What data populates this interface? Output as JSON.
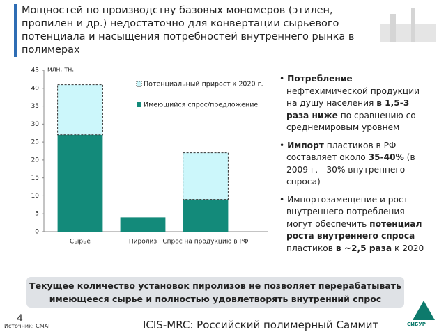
{
  "header": {
    "title": "Мощностей по производству базовых мономеров (этилен, пропилен и др.) недостаточно для конвертации сырьевого потенциала и насыщения потребностей внутреннего рынка в полимерах"
  },
  "chart_data": {
    "type": "stacked-bar",
    "unit": "млн. тн.",
    "categories": [
      "Сырье",
      "Пиролиз",
      "Спрос на продукцию в РФ"
    ],
    "series": [
      {
        "name": "Имеющийся спрос/предложение",
        "color": "#138a7a",
        "values": [
          27,
          4,
          9
        ]
      },
      {
        "name": "Потенциальный прирост к 2020 г.",
        "color": "#ccf7fb",
        "values": [
          14,
          null,
          13
        ]
      }
    ],
    "ylim": [
      0,
      45
    ],
    "yticks": [
      0,
      5,
      10,
      15,
      20,
      25,
      30,
      35,
      40,
      45
    ]
  },
  "bullets": [
    [
      "Потребление",
      " нефтехимической продукции на душу населения ",
      "в 1,5-3 раза ниже",
      " по сравнению со среднемировым уровнем"
    ],
    [
      "Импорт",
      " пластиков в РФ составляет около ",
      "35-40%",
      " (в 2009 г. - 30% внутреннего спроса)"
    ],
    [
      "Импортозамещение и рост внутреннего потребления могут обеспечить ",
      "потенциал роста внутреннего спроса",
      " пластиков ",
      "в ~2,5 раза",
      " к 2020"
    ]
  ],
  "conclusion": "Текущее количество установок пиролизов не позволяет перерабатывать имеющееся сырье и полностью удовлетворять внутренний спрос",
  "footer": {
    "source": "Источник: CMAI",
    "page": "4",
    "event": "ICIS-MRC: Российский полимерный Саммит",
    "logo": "СИБУР"
  }
}
